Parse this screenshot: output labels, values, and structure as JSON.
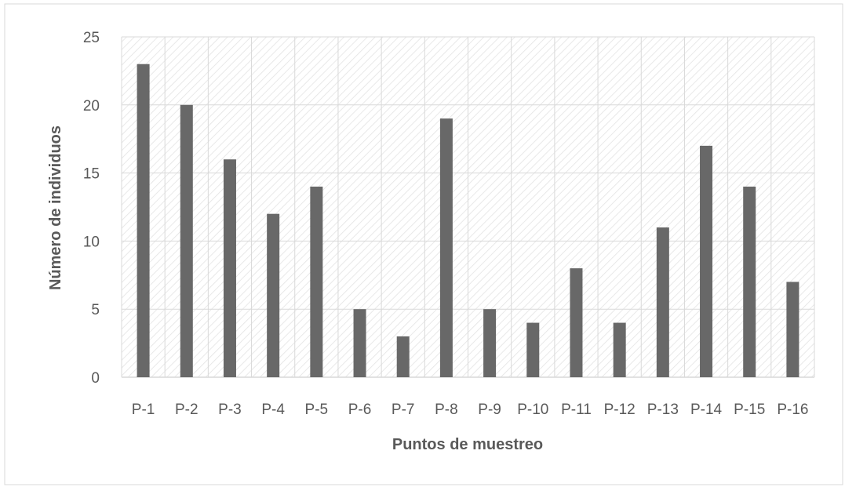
{
  "colors": {
    "bar": "#686868",
    "grid": "#d9d9d9",
    "hatch": "#e0e0e0",
    "text": "#595959",
    "background": "#ffffff"
  },
  "chart_data": {
    "type": "bar",
    "title": "",
    "xlabel": "Puntos de muestreo",
    "ylabel": "Número de individuos",
    "categories": [
      "P-1",
      "P-2",
      "P-3",
      "P-4",
      "P-5",
      "P-6",
      "P-7",
      "P-8",
      "P-9",
      "P-10",
      "P-11",
      "P-12",
      "P-13",
      "P-14",
      "P-15",
      "P-16"
    ],
    "values": [
      23,
      20,
      16,
      12,
      14,
      5,
      3,
      19,
      5,
      4,
      8,
      4,
      11,
      17,
      14,
      7
    ],
    "ylim": [
      0,
      25
    ],
    "yticks": [
      "0",
      "5",
      "10",
      "15",
      "20",
      "25"
    ],
    "grid": true,
    "legend": "none"
  }
}
